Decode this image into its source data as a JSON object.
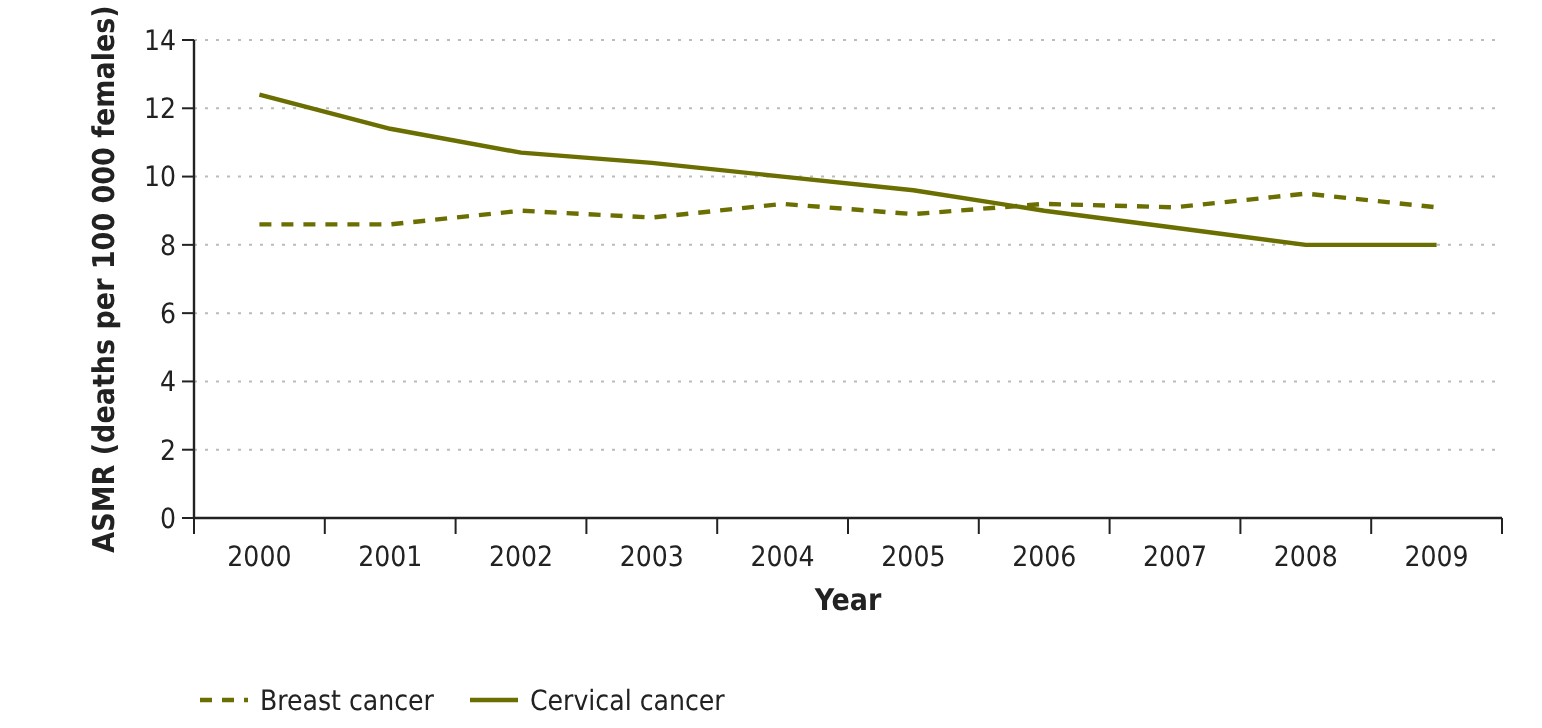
{
  "chart_data": {
    "type": "line",
    "xlabel": "Year",
    "ylabel": "ASMR (deaths per 100 000 females)",
    "categories": [
      "2000",
      "2001",
      "2002",
      "2003",
      "2004",
      "2005",
      "2006",
      "2007",
      "2008",
      "2009"
    ],
    "series": [
      {
        "name": "Breast cancer",
        "color": "#6b6e00",
        "line_style": "dashed",
        "values": [
          8.6,
          8.6,
          9.0,
          8.8,
          9.2,
          8.9,
          9.2,
          9.1,
          9.5,
          9.1
        ]
      },
      {
        "name": "Cervical cancer",
        "color": "#6b6e00",
        "line_style": "solid",
        "values": [
          12.4,
          11.4,
          10.7,
          10.4,
          10.0,
          9.6,
          9.0,
          8.5,
          8.0,
          8.0
        ]
      }
    ],
    "ylim": [
      0,
      14
    ],
    "yticks": [
      0,
      2,
      4,
      6,
      8,
      10,
      12,
      14
    ],
    "grid": "y",
    "legend": "bottom left",
    "marker": "none"
  }
}
